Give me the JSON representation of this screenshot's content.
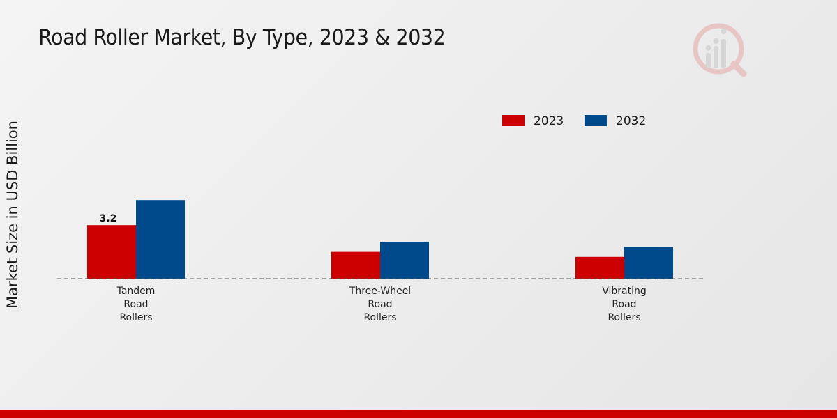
{
  "chart_data": {
    "type": "bar",
    "title": "Road Roller Market, By Type, 2023 & 2032",
    "ylabel": "Market Size in USD Billion",
    "xlabel": "",
    "categories": [
      [
        "Tandem",
        "Road",
        "Rollers"
      ],
      [
        "Three-Wheel",
        "Road",
        "Rollers"
      ],
      [
        "Vibrating",
        "Road",
        "Rollers"
      ]
    ],
    "series": [
      {
        "name": "2023",
        "color": "#cc0000",
        "values": [
          3.2,
          1.6,
          1.3
        ]
      },
      {
        "name": "2032",
        "color": "#004a8c",
        "values": [
          4.7,
          2.2,
          1.9
        ]
      }
    ],
    "data_labels": [
      {
        "series": 0,
        "category": 0,
        "text": "3.2"
      }
    ],
    "ylim": [
      0,
      10
    ],
    "grid": false,
    "legend_position": "top-right"
  },
  "colors": {
    "accent_bar": "#cc0000",
    "axis": "#555555"
  },
  "icons": {
    "watermark": "market-research-logo-icon"
  }
}
